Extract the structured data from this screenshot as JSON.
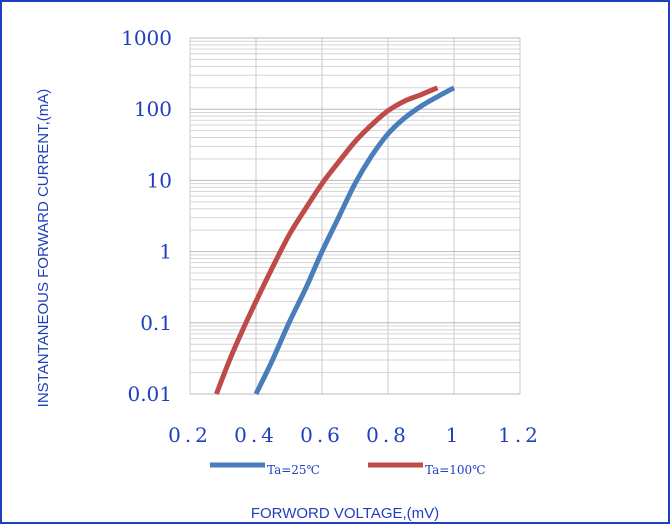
{
  "chart_data": {
    "type": "line",
    "xlabel": "FORWORD VOLTAGE,(mV)",
    "ylabel": "INSTANTANEOUS FORWARD CURRENT,(mA)",
    "xlim": [
      0.2,
      1.2
    ],
    "ylim": [
      0.01,
      1000
    ],
    "y_scale": "log",
    "x_ticks": [
      0.2,
      0.4,
      0.6,
      0.8,
      1,
      1.2
    ],
    "x_tick_labels": [
      "0.2",
      "0.4",
      "0.6",
      "0.8",
      "1",
      "1.2"
    ],
    "y_ticks": [
      0.01,
      0.1,
      1,
      10,
      100,
      1000
    ],
    "y_tick_labels": [
      "0.01",
      "0.1",
      "1",
      "10",
      "100",
      "1000"
    ],
    "grid": true,
    "legend_position": "bottom",
    "series": [
      {
        "name": "Ta=25℃",
        "color": "#4a7ebb",
        "x": [
          0.4,
          0.45,
          0.5,
          0.55,
          0.6,
          0.65,
          0.7,
          0.75,
          0.8,
          0.85,
          0.9,
          0.95,
          1.0
        ],
        "y": [
          0.01,
          0.03,
          0.1,
          0.3,
          1,
          3,
          9,
          22,
          45,
          75,
          110,
          150,
          200
        ]
      },
      {
        "name": "Ta=100℃",
        "color": "#be4b48",
        "x": [
          0.28,
          0.32,
          0.36,
          0.4,
          0.45,
          0.5,
          0.55,
          0.6,
          0.65,
          0.7,
          0.75,
          0.8,
          0.85,
          0.9,
          0.95
        ],
        "y": [
          0.01,
          0.03,
          0.08,
          0.2,
          0.6,
          1.7,
          4,
          9,
          18,
          35,
          60,
          95,
          130,
          160,
          200
        ]
      }
    ]
  }
}
